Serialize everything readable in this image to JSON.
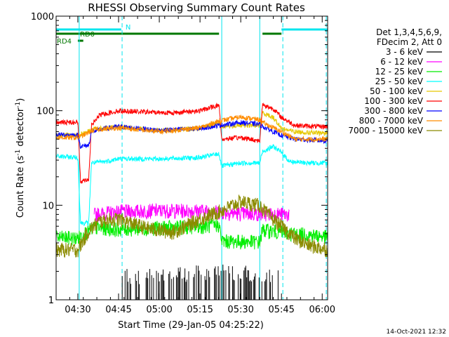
{
  "chart_data": {
    "type": "line",
    "title": "RHESSI Observing Summary Count Rates",
    "xlabel": "Start Time (29-Jan-05 04:25:22)",
    "ylabel_main": "Count Rate (s",
    "ylabel_sup1": "-1",
    "ylabel_mid": " detector",
    "ylabel_sup2": "-1",
    "ylabel_end": ")",
    "yscale": "log",
    "ylim": [
      1,
      1000
    ],
    "xlim_min": [
      262,
      362
    ],
    "x_ticks": [
      {
        "label": "04:30",
        "min": 270
      },
      {
        "label": "04:45",
        "min": 285
      },
      {
        "label": "05:00",
        "min": 300
      },
      {
        "label": "05:15",
        "min": 315
      },
      {
        "label": "05:30",
        "min": 330
      },
      {
        "label": "05:45",
        "min": 345
      },
      {
        "label": "06:00",
        "min": 360
      }
    ],
    "y_ticks": [
      {
        "label": "1",
        "value": 1
      },
      {
        "label": "10",
        "value": 10
      },
      {
        "label": "100",
        "value": 100
      },
      {
        "label": "1000",
        "value": 1000
      }
    ],
    "legend_header": [
      "Det 1,3,4,5,6,9,",
      "FDecim 2, Att 0"
    ],
    "timestamp": "14-Oct-2021 12:32",
    "flag_bars": [
      {
        "label": "N",
        "color": "#00e5ee",
        "segments": [
          [
            262,
            286
          ],
          [
            345,
            362
          ]
        ]
      },
      {
        "label": "RD0",
        "color": "#007700",
        "segments": [
          [
            262,
            322
          ],
          [
            338,
            345
          ]
        ]
      },
      {
        "label": "RD4",
        "color": "#007700",
        "segments": [
          [
            270,
            272
          ]
        ]
      }
    ],
    "vlines_solid": [
      270.5,
      323,
      337
    ],
    "vlines_dashed": [
      286.3,
      345.5,
      361.5
    ],
    "series": [
      {
        "name": "3 - 6 keV",
        "color": "#000000",
        "points": [
          [
            286,
            1.4
          ],
          [
            300,
            1.5
          ],
          [
            320,
            1.6
          ],
          [
            338,
            1.5
          ],
          [
            344,
            1.4
          ]
        ]
      },
      {
        "name": "6 - 12 keV",
        "color": "#ff00ff",
        "points": [
          [
            276,
            8
          ],
          [
            285,
            8.6
          ],
          [
            300,
            8.8
          ],
          [
            315,
            8.8
          ],
          [
            323,
            8.5
          ],
          [
            330,
            8.2
          ],
          [
            344,
            8.1
          ],
          [
            348,
            8
          ]
        ]
      },
      {
        "name": "12 - 25 keV",
        "color": "#00ee00",
        "points": [
          [
            262,
            4.6
          ],
          [
            270,
            4.5
          ],
          [
            272,
            5.0
          ],
          [
            276,
            5.8
          ],
          [
            285,
            5.6
          ],
          [
            300,
            5.8
          ],
          [
            315,
            6.0
          ],
          [
            322,
            6.2
          ],
          [
            323,
            4.2
          ],
          [
            337,
            4.1
          ],
          [
            338,
            5.5
          ],
          [
            345,
            5.2
          ],
          [
            350,
            5.0
          ],
          [
            358,
            4.8
          ],
          [
            362,
            4.6
          ]
        ]
      },
      {
        "name": "25 - 50 keV",
        "color": "#00ffff",
        "points": [
          [
            262,
            33
          ],
          [
            270,
            32
          ],
          [
            271,
            6.5
          ],
          [
            274,
            6.5
          ],
          [
            275,
            28
          ],
          [
            280,
            29
          ],
          [
            285,
            31
          ],
          [
            300,
            31
          ],
          [
            315,
            32
          ],
          [
            322,
            35
          ],
          [
            323,
            26
          ],
          [
            330,
            28
          ],
          [
            337,
            28
          ],
          [
            338,
            37
          ],
          [
            342,
            42
          ],
          [
            345,
            36
          ],
          [
            348,
            29
          ],
          [
            355,
            28
          ],
          [
            362,
            28
          ]
        ]
      },
      {
        "name": "50 - 100 keV",
        "color": "#e6c800",
        "points": [
          [
            262,
            55
          ],
          [
            270,
            55
          ],
          [
            272,
            58
          ],
          [
            276,
            64
          ],
          [
            285,
            67
          ],
          [
            300,
            62
          ],
          [
            315,
            65
          ],
          [
            322,
            75
          ],
          [
            323,
            68
          ],
          [
            330,
            70
          ],
          [
            337,
            70
          ],
          [
            338,
            95
          ],
          [
            342,
            85
          ],
          [
            345,
            65
          ],
          [
            350,
            60
          ],
          [
            358,
            58
          ],
          [
            362,
            58
          ]
        ]
      },
      {
        "name": "100 - 300 keV",
        "color": "#ff0000",
        "points": [
          [
            262,
            75
          ],
          [
            270,
            76
          ],
          [
            271,
            18
          ],
          [
            274,
            19
          ],
          [
            275,
            70
          ],
          [
            278,
            90
          ],
          [
            285,
            100
          ],
          [
            295,
            97
          ],
          [
            305,
            95
          ],
          [
            315,
            100
          ],
          [
            322,
            115
          ],
          [
            323,
            50
          ],
          [
            330,
            52
          ],
          [
            337,
            48
          ],
          [
            338,
            115
          ],
          [
            342,
            105
          ],
          [
            345,
            85
          ],
          [
            350,
            70
          ],
          [
            358,
            68
          ],
          [
            362,
            68
          ]
        ]
      },
      {
        "name": "300 - 800 keV",
        "color": "#0000ff",
        "points": [
          [
            262,
            56
          ],
          [
            270,
            55
          ],
          [
            271,
            42
          ],
          [
            274,
            43
          ],
          [
            275,
            60
          ],
          [
            280,
            65
          ],
          [
            285,
            68
          ],
          [
            300,
            62
          ],
          [
            315,
            65
          ],
          [
            322,
            70
          ],
          [
            330,
            75
          ],
          [
            337,
            72
          ],
          [
            338,
            68
          ],
          [
            345,
            55
          ],
          [
            350,
            50
          ],
          [
            362,
            48
          ]
        ]
      },
      {
        "name": "800 - 7000 keV",
        "color": "#ff8c00",
        "points": [
          [
            262,
            52
          ],
          [
            270,
            52
          ],
          [
            272,
            55
          ],
          [
            276,
            63
          ],
          [
            285,
            66
          ],
          [
            300,
            60
          ],
          [
            315,
            66
          ],
          [
            322,
            78
          ],
          [
            330,
            86
          ],
          [
            337,
            80
          ],
          [
            338,
            75
          ],
          [
            345,
            60
          ],
          [
            350,
            50
          ],
          [
            362,
            50
          ]
        ]
      },
      {
        "name": "7000 - 15000 keV",
        "color": "#8b8b00",
        "points": [
          [
            262,
            3.4
          ],
          [
            270,
            3.4
          ],
          [
            274,
            5.4
          ],
          [
            278,
            6.8
          ],
          [
            285,
            7.2
          ],
          [
            295,
            5.8
          ],
          [
            305,
            5.2
          ],
          [
            315,
            7.2
          ],
          [
            322,
            8.6
          ],
          [
            330,
            11
          ],
          [
            337,
            10
          ],
          [
            340,
            8
          ],
          [
            345,
            6
          ],
          [
            350,
            4.5
          ],
          [
            355,
            3.8
          ],
          [
            362,
            3.4
          ]
        ]
      }
    ]
  }
}
